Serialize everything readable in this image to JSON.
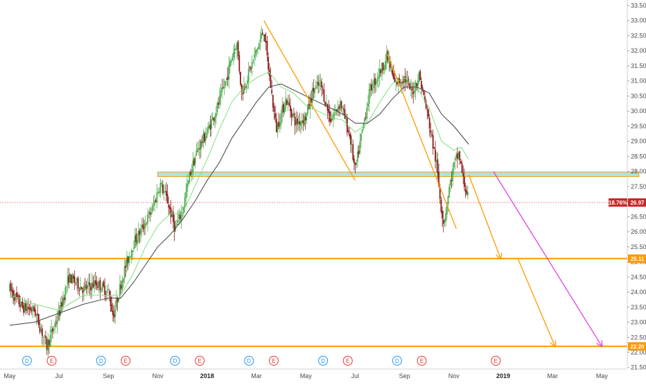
{
  "colors": {
    "up": "#4caf50",
    "down": "#8b1a1a",
    "sma_fast": "#7fe07f",
    "sma_slow": "#404040",
    "orange": "#ff9800",
    "magenta": "#e040e0",
    "zone_fill": "#a8e4f0",
    "zone_stroke": "#ff9800",
    "current_tag": "#c62828",
    "dividend": "#2196f3",
    "earnings": "#e53935"
  },
  "chart_data": {
    "type": "candlestick",
    "title": "",
    "xlabel": "",
    "ylabel": "",
    "ylim": [
      21.5,
      33.6
    ],
    "grid": false,
    "price_axis": {
      "side": "right",
      "ticks": [
        21.5,
        22.0,
        22.5,
        23.0,
        23.5,
        24.0,
        24.5,
        25.0,
        25.5,
        26.0,
        26.5,
        27.0,
        27.5,
        28.0,
        28.5,
        29.0,
        29.5,
        30.0,
        30.5,
        31.0,
        31.5,
        32.0,
        32.5,
        33.0,
        33.5
      ],
      "tick_labels": [
        "21.50",
        "22.00",
        "22.50",
        "23.00",
        "23.50",
        "24.00",
        "24.50",
        "25.00",
        "25.50",
        "26.00",
        "26.50",
        "27.00",
        "27.50",
        "28.00",
        "28.50",
        "29.00",
        "29.50",
        "30.00",
        "30.50",
        "31.00",
        "31.50",
        "32.00",
        "32.50",
        "33.00",
        "33.50"
      ]
    },
    "time_axis": {
      "labels": [
        {
          "text": "May",
          "month": 0,
          "bold": false
        },
        {
          "text": "Jul",
          "month": 2,
          "bold": false
        },
        {
          "text": "Sep",
          "month": 4,
          "bold": false
        },
        {
          "text": "Nov",
          "month": 6,
          "bold": false
        },
        {
          "text": "2018",
          "month": 8,
          "bold": true
        },
        {
          "text": "Mar",
          "month": 10,
          "bold": false
        },
        {
          "text": "May",
          "month": 12,
          "bold": false
        },
        {
          "text": "Jul",
          "month": 14,
          "bold": false
        },
        {
          "text": "Sep",
          "month": 16,
          "bold": false
        },
        {
          "text": "Nov",
          "month": 18,
          "bold": false
        },
        {
          "text": "2019",
          "month": 20,
          "bold": true
        },
        {
          "text": "Mar",
          "month": 22,
          "bold": false
        },
        {
          "text": "May",
          "month": 24,
          "bold": false
        }
      ]
    },
    "price_path": [
      [
        0,
        24.1
      ],
      [
        0.5,
        23.5
      ],
      [
        1.0,
        23.4
      ],
      [
        1.5,
        22.2
      ],
      [
        2.0,
        23.3
      ],
      [
        2.4,
        24.5
      ],
      [
        3.0,
        24.1
      ],
      [
        3.5,
        24.3
      ],
      [
        4.0,
        24.0
      ],
      [
        4.2,
        23.2
      ],
      [
        4.6,
        24.6
      ],
      [
        5.0,
        25.6
      ],
      [
        5.5,
        26.3
      ],
      [
        5.8,
        26.8
      ],
      [
        6.1,
        27.6
      ],
      [
        6.4,
        27.0
      ],
      [
        6.7,
        26.1
      ],
      [
        7.0,
        26.7
      ],
      [
        7.3,
        27.9
      ],
      [
        7.6,
        28.7
      ],
      [
        8.0,
        29.3
      ],
      [
        8.4,
        30.1
      ],
      [
        8.8,
        31.1
      ],
      [
        9.0,
        31.8
      ],
      [
        9.2,
        32.3
      ],
      [
        9.4,
        30.6
      ],
      [
        9.7,
        31.3
      ],
      [
        10.0,
        32.0
      ],
      [
        10.3,
        32.7
      ],
      [
        10.5,
        31.3
      ],
      [
        10.8,
        29.4
      ],
      [
        11.2,
        30.4
      ],
      [
        11.6,
        29.6
      ],
      [
        12.0,
        29.8
      ],
      [
        12.3,
        30.7
      ],
      [
        12.6,
        30.9
      ],
      [
        13.0,
        29.7
      ],
      [
        13.4,
        30.3
      ],
      [
        13.8,
        29.1
      ],
      [
        14.0,
        28.0
      ],
      [
        14.3,
        29.4
      ],
      [
        14.6,
        30.7
      ],
      [
        15.0,
        31.3
      ],
      [
        15.3,
        31.8
      ],
      [
        15.6,
        30.9
      ],
      [
        16.0,
        31.1
      ],
      [
        16.3,
        30.6
      ],
      [
        16.6,
        31.2
      ],
      [
        17.0,
        29.6
      ],
      [
        17.3,
        28.2
      ],
      [
        17.5,
        26.7
      ],
      [
        17.6,
        26.3
      ],
      [
        17.8,
        27.4
      ],
      [
        18.0,
        28.2
      ],
      [
        18.2,
        28.6
      ],
      [
        18.4,
        27.6
      ],
      [
        18.6,
        27.1
      ]
    ],
    "moving_averages": [
      {
        "name": "sma_fast",
        "color": "#7fe07f",
        "values": [
          [
            0,
            23.9
          ],
          [
            1.0,
            23.6
          ],
          [
            2.0,
            23.4
          ],
          [
            3.0,
            23.9
          ],
          [
            4.0,
            23.9
          ],
          [
            4.5,
            23.9
          ],
          [
            5.0,
            24.6
          ],
          [
            5.5,
            25.5
          ],
          [
            6.0,
            26.2
          ],
          [
            6.5,
            26.6
          ],
          [
            7.0,
            26.6
          ],
          [
            7.5,
            27.5
          ],
          [
            8.0,
            28.4
          ],
          [
            8.5,
            29.4
          ],
          [
            9.0,
            30.3
          ],
          [
            9.5,
            30.8
          ],
          [
            10.0,
            31.1
          ],
          [
            10.5,
            31.3
          ],
          [
            11.0,
            30.8
          ],
          [
            11.5,
            30.6
          ],
          [
            12.0,
            30.2
          ],
          [
            12.5,
            30.0
          ],
          [
            13.0,
            29.8
          ],
          [
            13.5,
            29.7
          ],
          [
            14.0,
            29.3
          ],
          [
            14.5,
            29.6
          ],
          [
            15.0,
            30.3
          ],
          [
            15.5,
            30.9
          ],
          [
            16.0,
            31.1
          ],
          [
            16.5,
            30.8
          ],
          [
            17.0,
            30.1
          ],
          [
            17.5,
            29.0
          ],
          [
            18.0,
            28.7
          ],
          [
            18.3,
            28.8
          ],
          [
            18.6,
            28.4
          ]
        ]
      },
      {
        "name": "sma_slow",
        "color": "#404040",
        "values": [
          [
            0,
            22.9
          ],
          [
            1.0,
            23.0
          ],
          [
            2.0,
            23.3
          ],
          [
            3.0,
            23.6
          ],
          [
            4.0,
            23.8
          ],
          [
            4.5,
            23.8
          ],
          [
            5.0,
            24.3
          ],
          [
            5.5,
            24.9
          ],
          [
            6.0,
            25.5
          ],
          [
            6.5,
            25.9
          ],
          [
            7.0,
            26.4
          ],
          [
            7.5,
            27.0
          ],
          [
            8.0,
            27.7
          ],
          [
            8.5,
            28.3
          ],
          [
            9.0,
            29.1
          ],
          [
            9.5,
            29.7
          ],
          [
            10.0,
            30.3
          ],
          [
            10.5,
            30.8
          ],
          [
            11.0,
            30.9
          ],
          [
            11.5,
            30.7
          ],
          [
            12.0,
            30.5
          ],
          [
            12.5,
            30.3
          ],
          [
            13.0,
            30.1
          ],
          [
            13.5,
            29.9
          ],
          [
            14.0,
            29.6
          ],
          [
            14.5,
            29.6
          ],
          [
            15.0,
            29.9
          ],
          [
            15.5,
            30.4
          ],
          [
            16.0,
            30.8
          ],
          [
            16.5,
            30.8
          ],
          [
            17.0,
            30.6
          ],
          [
            17.5,
            29.9
          ],
          [
            18.0,
            29.5
          ],
          [
            18.6,
            28.9
          ]
        ]
      }
    ],
    "horizontal_levels": [
      {
        "name": "support-level-upper",
        "value": 25.11,
        "label": "25.11",
        "color": "#ff9800"
      },
      {
        "name": "support-level-lower",
        "value": 22.2,
        "label": "22.20",
        "color": "#ff9800"
      }
    ],
    "resistance_zone": {
      "from_month": 6.0,
      "to_month": 25.5,
      "low": 27.83,
      "high": 27.98
    },
    "current_price": {
      "value": 26.97,
      "label": "26.97",
      "change_label": "18.76%"
    },
    "trend_lines": [
      {
        "name": "trend-line-2018-top",
        "color": "#ff9800",
        "arrow": false,
        "points": [
          [
            10.3,
            33.0
          ],
          [
            14.0,
            27.7
          ]
        ]
      },
      {
        "name": "trend-line-2018-mid",
        "color": "#ff9800",
        "arrow": false,
        "points": [
          [
            15.3,
            31.9
          ],
          [
            18.1,
            26.1
          ]
        ]
      },
      {
        "name": "projection-to-25-11",
        "color": "#ff9800",
        "arrow": true,
        "points": [
          [
            18.6,
            27.9
          ],
          [
            19.9,
            25.1
          ]
        ]
      },
      {
        "name": "projection-to-22-20",
        "color": "#ff9800",
        "arrow": true,
        "points": [
          [
            20.6,
            25.1
          ],
          [
            22.1,
            22.2
          ]
        ]
      },
      {
        "name": "projection-magenta",
        "color": "#e040e0",
        "arrow": true,
        "points": [
          [
            19.6,
            28.0
          ],
          [
            24.0,
            22.2
          ]
        ]
      }
    ],
    "events": [
      {
        "type": "D",
        "month": 0.7
      },
      {
        "type": "E",
        "month": 1.7
      },
      {
        "type": "D",
        "month": 3.7
      },
      {
        "type": "E",
        "month": 4.7
      },
      {
        "type": "D",
        "month": 6.7
      },
      {
        "type": "E",
        "month": 7.7
      },
      {
        "type": "D",
        "month": 9.7
      },
      {
        "type": "E",
        "month": 10.7
      },
      {
        "type": "D",
        "month": 12.7
      },
      {
        "type": "E",
        "month": 13.7
      },
      {
        "type": "D",
        "month": 15.7
      },
      {
        "type": "E",
        "month": 16.7
      },
      {
        "type": "E",
        "month": 19.7
      }
    ]
  }
}
